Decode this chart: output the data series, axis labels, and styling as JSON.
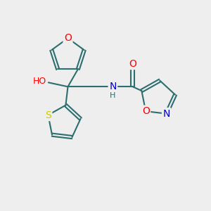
{
  "bg_color": "#eeeeee",
  "bond_color": "#2d6e6e",
  "bond_width": 1.5,
  "atom_colors": {
    "O": "#ff0000",
    "N": "#0000cd",
    "S": "#cccc00",
    "C": "#2d6e6e",
    "H": "#2d6e6e"
  },
  "font_size": 10,
  "fig_size": [
    3.0,
    3.0
  ],
  "dpi": 100
}
